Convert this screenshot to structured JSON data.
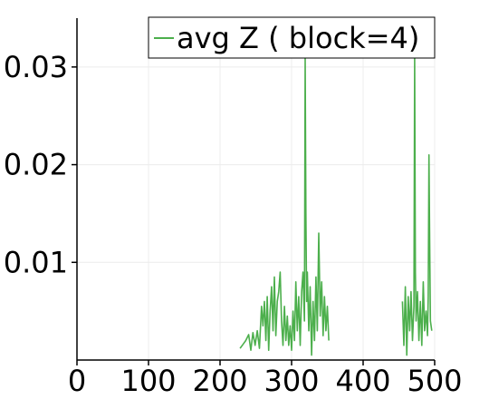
{
  "chart_data": {
    "type": "line",
    "title": "",
    "xlabel": "",
    "ylabel": "",
    "xlim": [
      0,
      500
    ],
    "ylim": [
      0,
      0.035
    ],
    "x_ticks": [
      0,
      100,
      200,
      300,
      400,
      500
    ],
    "x_tick_labels": [
      "0",
      "100",
      "200",
      "300",
      "400",
      "500"
    ],
    "y_ticks": [
      0.01,
      0.02,
      0.03
    ],
    "y_tick_labels": [
      "0.01",
      "0.02",
      "0.03"
    ],
    "grid": true,
    "legend_position": "top-right",
    "series": [
      {
        "name": "avg Z ( block=4)",
        "color": "#4caf4c",
        "x": [
          228,
          232,
          236,
          240,
          243,
          246,
          249,
          252,
          255,
          258,
          260,
          262,
          264,
          266,
          268,
          270,
          272,
          274,
          276,
          278,
          280,
          282,
          284,
          286,
          288,
          290,
          292,
          294,
          296,
          298,
          300,
          302,
          304,
          306,
          308,
          310,
          312,
          314,
          316,
          318,
          319,
          320,
          321,
          322,
          324,
          326,
          328,
          330,
          332,
          334,
          336,
          338,
          340,
          342,
          344,
          346,
          348,
          350,
          352,
          455,
          457,
          459,
          461,
          463,
          465,
          467,
          469,
          471,
          472,
          473,
          474,
          476,
          478,
          480,
          482,
          484,
          486,
          488,
          490,
          491,
          492,
          493,
          494,
          496
        ],
        "y": [
          0.0012,
          0.0016,
          0.002,
          0.0026,
          0.001,
          0.0028,
          0.0015,
          0.003,
          0.0012,
          0.0055,
          0.0035,
          0.006,
          0.002,
          0.0065,
          0.001,
          0.005,
          0.0075,
          0.003,
          0.0085,
          0.0025,
          0.006,
          0.007,
          0.009,
          0.004,
          0.0015,
          0.0055,
          0.002,
          0.0045,
          0.0015,
          0.0035,
          0.001,
          0.005,
          0.002,
          0.008,
          0.003,
          0.0065,
          0.0015,
          0.007,
          0.009,
          0.004,
          0.031,
          0.015,
          0.006,
          0.009,
          0.003,
          0.0075,
          0.0005,
          0.006,
          0.002,
          0.0085,
          0.003,
          0.013,
          0.0045,
          0.008,
          0.0025,
          0.0065,
          0.003,
          0.0055,
          0.002,
          0.006,
          0.0015,
          0.0075,
          0.0005,
          0.0065,
          0.003,
          0.007,
          0.002,
          0.0055,
          0.031,
          0.009,
          0.004,
          0.007,
          0.002,
          0.006,
          0.0015,
          0.008,
          0.003,
          0.005,
          0.0025,
          0.0065,
          0.021,
          0.012,
          0.004,
          0.003
        ]
      }
    ]
  }
}
